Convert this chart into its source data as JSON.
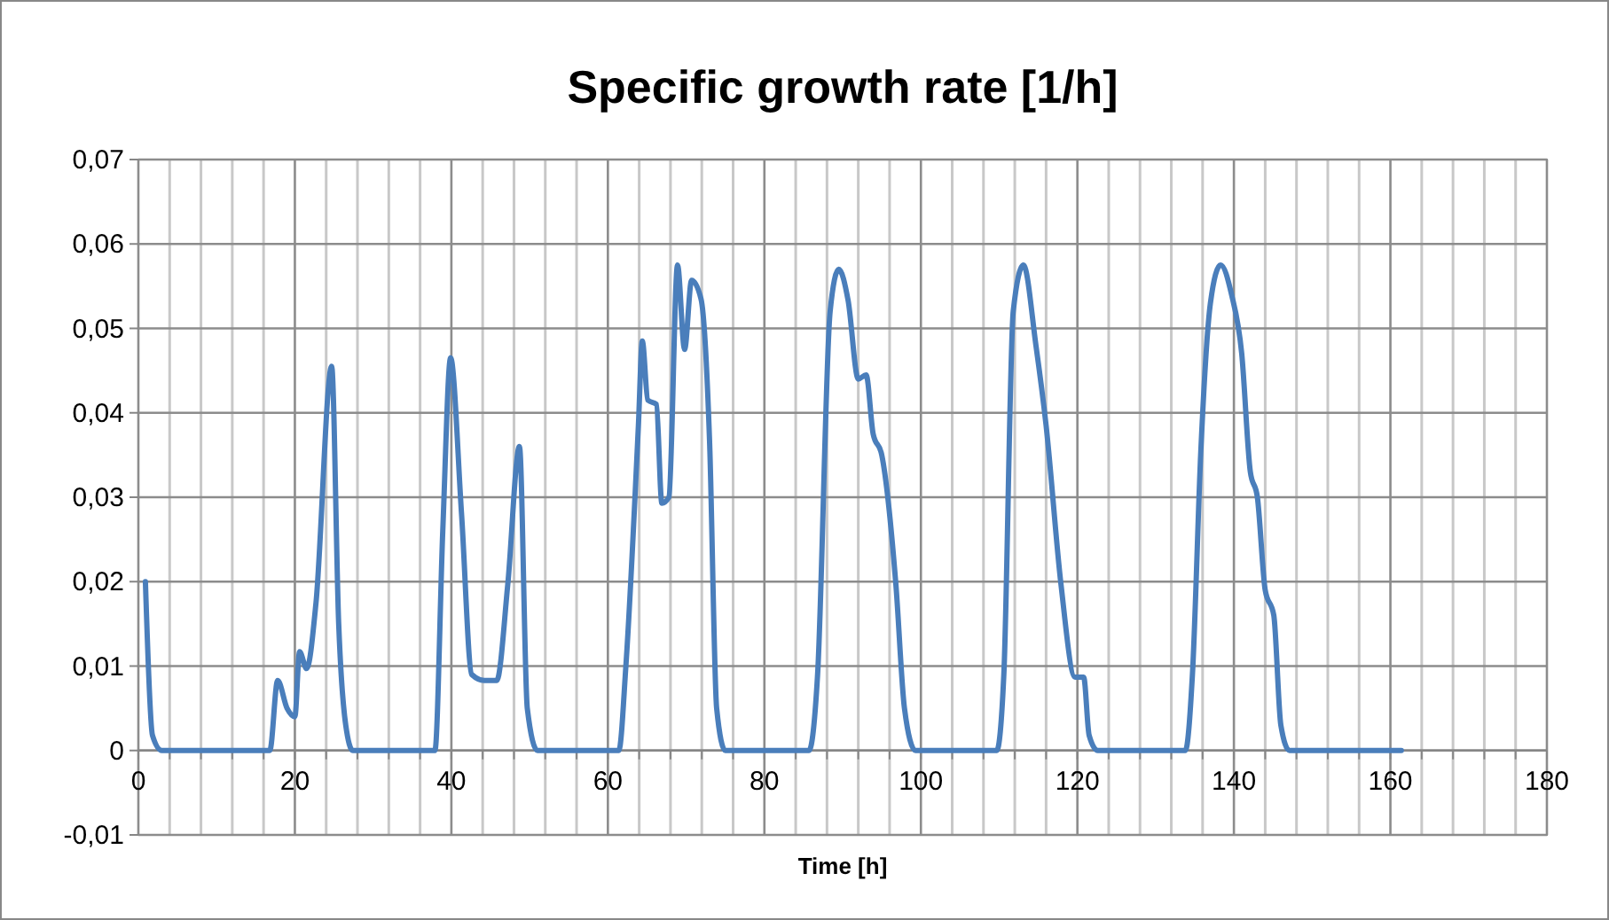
{
  "chart_data": {
    "type": "line",
    "title": "Specific growth rate [1/h]",
    "xlabel": "Time [h]",
    "series": [
      {
        "color": "#4a7ebb",
        "x": [
          0.9,
          1.8,
          3,
          16.8,
          17.8,
          19,
          20,
          20.6,
          21.5,
          22.7,
          24.7,
          25.6,
          26.5,
          27.4,
          37.9,
          38.9,
          39.9,
          41.3,
          42.6,
          44.2,
          45.8,
          47.2,
          48.7,
          49.7,
          51,
          61.4,
          62.3,
          63.9,
          64.4,
          65.1,
          66.2,
          66.9,
          67.8,
          68.9,
          69.8,
          70.7,
          71.9,
          73,
          73.9,
          75,
          85.7,
          86.8,
          88.4,
          89.5,
          90.7,
          92,
          93,
          93.9,
          95,
          96.8,
          97.9,
          99.3,
          109.7,
          110.6,
          111.8,
          113.1,
          114.7,
          116,
          117.9,
          119.7,
          120.8,
          121.5,
          122.6,
          133.8,
          134.7,
          135.8,
          137,
          138.3,
          139.7,
          141,
          142.1,
          143,
          144,
          145.1,
          146,
          147.1,
          161.4
        ],
        "values": [
          0.02,
          0.0018,
          0,
          0,
          0.0083,
          0.005,
          0.004,
          0.0117,
          0.0097,
          0.0175,
          0.0455,
          0.015,
          0.003,
          0,
          0,
          0.026,
          0.0465,
          0.028,
          0.009,
          0.0083,
          0.0083,
          0.0196,
          0.036,
          0.005,
          0,
          0,
          0.01,
          0.0385,
          0.0485,
          0.0415,
          0.041,
          0.0293,
          0.03,
          0.0575,
          0.0475,
          0.0557,
          0.0535,
          0.0365,
          0.005,
          0,
          0,
          0.009,
          0.052,
          0.057,
          0.0533,
          0.044,
          0.0445,
          0.0375,
          0.035,
          0.0197,
          0.005,
          0,
          0,
          0.009,
          0.052,
          0.0575,
          0.048,
          0.0385,
          0.0197,
          0.0087,
          0.0087,
          0.0018,
          0,
          0,
          0.009,
          0.036,
          0.053,
          0.0575,
          0.054,
          0.047,
          0.033,
          0.03,
          0.019,
          0.016,
          0.003,
          0,
          0
        ]
      }
    ],
    "xlim": [
      0,
      180
    ],
    "xticks": [
      0,
      {
        "value": 4,
        "label": null
      },
      {
        "value": 8,
        "label": null
      },
      {
        "value": 12,
        "label": null
      },
      {
        "value": 16,
        "label": null
      },
      20,
      {
        "value": 24,
        "label": null
      },
      {
        "value": 28,
        "label": null
      },
      {
        "value": 32,
        "label": null
      },
      {
        "value": 36,
        "label": null
      },
      40,
      {
        "value": 44,
        "label": null
      },
      {
        "value": 48,
        "label": null
      },
      {
        "value": 52,
        "label": null
      },
      {
        "value": 56,
        "label": null
      },
      60,
      {
        "value": 64,
        "label": null
      },
      {
        "value": 68,
        "label": null
      },
      {
        "value": 72,
        "label": null
      },
      {
        "value": 76,
        "label": null
      },
      80,
      {
        "value": 84,
        "label": null
      },
      {
        "value": 88,
        "label": null
      },
      {
        "value": 92,
        "label": null
      },
      {
        "value": 96,
        "label": null
      },
      100,
      {
        "value": 104,
        "label": null
      },
      {
        "value": 108,
        "label": null
      },
      {
        "value": 112,
        "label": null
      },
      {
        "value": 116,
        "label": null
      },
      120,
      {
        "value": 124,
        "label": null
      },
      {
        "value": 128,
        "label": null
      },
      {
        "value": 132,
        "label": null
      },
      {
        "value": 136,
        "label": null
      },
      140,
      {
        "value": 144,
        "label": null
      },
      {
        "value": 148,
        "label": null
      },
      {
        "value": 152,
        "label": null
      },
      {
        "value": 156,
        "label": null
      },
      160,
      {
        "value": 164,
        "label": null
      },
      {
        "value": 168,
        "label": null
      },
      {
        "value": 172,
        "label": null
      },
      {
        "value": 176,
        "label": null
      },
      180
    ],
    "ylim": [
      -0.01,
      0.07
    ],
    "yticks": [
      {
        "value": -0.01,
        "label": "-0,01"
      },
      0,
      {
        "value": 0.01,
        "label": "0,01"
      },
      {
        "value": 0.02,
        "label": "0,02"
      },
      {
        "value": 0.03,
        "label": "0,03"
      },
      {
        "value": 0.04,
        "label": "0,04"
      },
      {
        "value": 0.05,
        "label": "0,05"
      },
      {
        "value": 0.06,
        "label": "0,06"
      },
      {
        "value": 0.07,
        "label": "0,07"
      }
    ],
    "grid": true,
    "marker": "none",
    "line_style": "solid"
  }
}
